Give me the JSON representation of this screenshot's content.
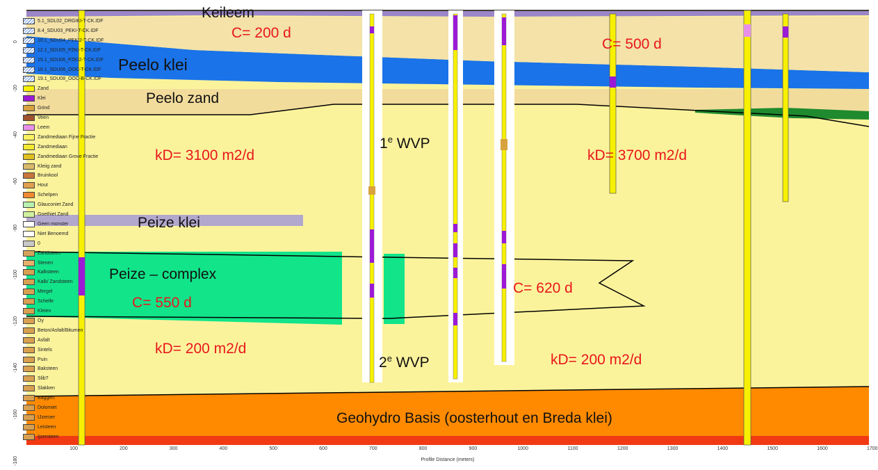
{
  "labels": {
    "keileem": "Keileem",
    "c_200": "C= 200 d",
    "c_500": "C= 500 d",
    "peelo_klei": "Peelo klei",
    "peelo_zand": "Peelo zand",
    "wvp1_num": "1",
    "wvp1_sup": "e",
    "wvp1_txt": " WVP",
    "kd_3100": "kD= 3100 m2/d",
    "kd_3700": "kD= 3700 m2/d",
    "peize_klei": "Peize klei",
    "peize_complex": "Peize – complex",
    "c_550": "C= 550 d",
    "c_620": "C= 620 d",
    "kd_200_left": "kD= 200 m2/d",
    "wvp2_num": "2",
    "wvp2_sup": "e",
    "wvp2_txt": " WVP",
    "kd_200_right": "kD= 200 m2/d",
    "geohydro": "Geohydro Basis (oosterhout en Breda klei)"
  },
  "legend": [
    {
      "label": "5.1_SDL02_DRGIKI-T-CK.IDF",
      "color": "#ffffff",
      "type": "hatch"
    },
    {
      "label": "8.4_SDU03_PEKI-T-CK.IDF",
      "color": "#ffffff",
      "type": "hatch"
    },
    {
      "label": "10.1_SDU04_PEKI2-T-CK.IDF",
      "color": "#ffffff",
      "type": "hatch"
    },
    {
      "label": "12.1_SDU05_PZKI-T-CK.IDF",
      "color": "#ffffff",
      "type": "hatch"
    },
    {
      "label": "15.1_SDU06_PZKI2-T-CK.IDF",
      "color": "#ffffff",
      "type": "hatch"
    },
    {
      "label": "16.1_SDU06_OOC-T-CK.IDF",
      "color": "#ffffff",
      "type": "hatch"
    },
    {
      "label": "19.1_SDU08_OOC-B-CK.IDF",
      "color": "#ffffff",
      "type": "hatch"
    },
    {
      "label": "Zand",
      "color": "#f7f000"
    },
    {
      "label": "Klei",
      "color": "#9b1ad6"
    },
    {
      "label": "Grind",
      "color": "#d8a23e"
    },
    {
      "label": "Veen",
      "color": "#a0522d"
    },
    {
      "label": "Leem",
      "color": "#e890e8"
    },
    {
      "label": "Zandmediaan Fijne Fractie",
      "color": "#f8f060"
    },
    {
      "label": "Zandmediaan",
      "color": "#f3e930"
    },
    {
      "label": "Zandmediaan Grove Fractie",
      "color": "#e0c020"
    },
    {
      "label": "Kleiig zand",
      "color": "#d9b96a"
    },
    {
      "label": "Bruinkool",
      "color": "#c8743a"
    },
    {
      "label": "Hout",
      "color": "#e0a050"
    },
    {
      "label": "Schelpen",
      "color": "#f08a30"
    },
    {
      "label": "Glauconiet Zand",
      "color": "#b8f0b0"
    },
    {
      "label": "Goethiet Zand",
      "color": "#d0f0a0"
    },
    {
      "label": "Geen monster",
      "color": "#ffffff"
    },
    {
      "label": "Niet Benoemd",
      "color": "#ffffff"
    },
    {
      "label": "0",
      "color": "#c8c8c8"
    },
    {
      "label": "Zandsteen",
      "color": "#d6a35a"
    },
    {
      "label": "Stenen",
      "color": "#e8b06a"
    },
    {
      "label": "Kalksteen",
      "color": "#d8a050"
    },
    {
      "label": "Kalk/ Zandsteen",
      "color": "#d8a050"
    },
    {
      "label": "Mergel",
      "color": "#d8a050"
    },
    {
      "label": "Schelle",
      "color": "#d8a050"
    },
    {
      "label": "Kleien",
      "color": "#d8a050"
    },
    {
      "label": "Oy",
      "color": "#d8a050"
    },
    {
      "label": "Beton/Asfalt/Bitumen",
      "color": "#d8a050"
    },
    {
      "label": "Asfalt",
      "color": "#d8a050"
    },
    {
      "label": "Sintels",
      "color": "#d8a050"
    },
    {
      "label": "Puin",
      "color": "#d8a050"
    },
    {
      "label": "Baksteen",
      "color": "#d8a050"
    },
    {
      "label": "Slib?",
      "color": "#d8a050"
    },
    {
      "label": "Slakken",
      "color": "#d8a050"
    },
    {
      "label": "Baggert",
      "color": "#d8a050"
    },
    {
      "label": "Dolomiet",
      "color": "#d8a050"
    },
    {
      "label": "IJzeroer",
      "color": "#d8a050"
    },
    {
      "label": "Leisteen",
      "color": "#d8a050"
    },
    {
      "label": "Ijzersteen",
      "color": "#d8a050"
    }
  ],
  "y_ticks": [
    "0",
    "-20",
    "-40",
    "-60",
    "-80",
    "-100",
    "-120",
    "-140",
    "-160",
    "-180"
  ],
  "x_axis": {
    "ticks": [
      "100",
      "200",
      "300",
      "400",
      "500",
      "600",
      "700",
      "800",
      "900",
      "1000",
      "1100",
      "1200",
      "1300",
      "1400",
      "1500",
      "1600",
      "1700"
    ],
    "title": "Profile Distance (meters)"
  },
  "colors": {
    "sand": "#fbf39c",
    "blue_clay": "#1a73e8",
    "peelo_zand": "#f2dc9c",
    "keileem": "#9a86c8",
    "peize_klei": "#b2a7cc",
    "peize_complex": "#12e48a",
    "base": "#ff8a00",
    "base_bottom": "#f23a12",
    "green_lens": "#1f8a2e"
  }
}
